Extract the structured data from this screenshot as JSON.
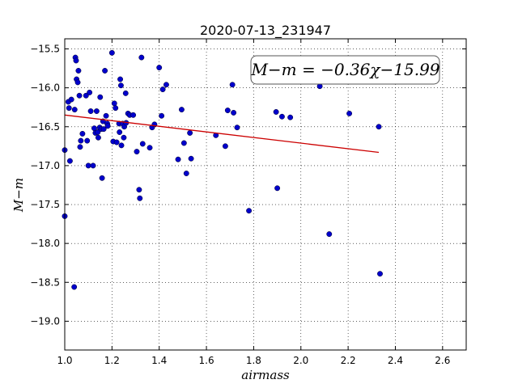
{
  "chart_data": {
    "type": "scatter",
    "title": "2020-07-13_231947",
    "xlabel": "airmass",
    "ylabel": "M−m",
    "xlim": [
      1.0,
      2.7
    ],
    "ylim": [
      -19.37,
      -15.37
    ],
    "x_ticks": [
      "1.0",
      "1.2",
      "1.4",
      "1.6",
      "1.8",
      "2.0",
      "2.2",
      "2.4",
      "2.6"
    ],
    "x_tick_values": [
      1.0,
      1.2,
      1.4,
      1.6,
      1.8,
      2.0,
      2.2,
      2.4,
      2.6
    ],
    "y_ticks": [
      "−15.5",
      "−16.0",
      "−16.5",
      "−17.0",
      "−17.5",
      "−18.0",
      "−18.5",
      "−19.0"
    ],
    "y_tick_values": [
      -15.5,
      -16.0,
      -16.5,
      -17.0,
      -17.5,
      -18.0,
      -18.5,
      -19.0
    ],
    "grid": true,
    "annotation": "M−m = −0.36χ−15.99",
    "series": [
      {
        "kind": "points",
        "color": "#0000cc",
        "x": [
          1.0,
          1.0,
          1.015,
          1.018,
          1.022,
          1.028,
          1.04,
          1.042,
          1.045,
          1.048,
          1.05,
          1.055,
          1.058,
          1.062,
          1.065,
          1.068,
          1.075,
          1.09,
          1.095,
          1.1,
          1.105,
          1.11,
          1.12,
          1.125,
          1.13,
          1.135,
          1.14,
          1.142,
          1.148,
          1.15,
          1.155,
          1.158,
          1.162,
          1.165,
          1.17,
          1.175,
          1.18,
          1.182,
          1.2,
          1.205,
          1.21,
          1.215,
          1.22,
          1.23,
          1.232,
          1.235,
          1.238,
          1.24,
          1.245,
          1.25,
          1.252,
          1.258,
          1.26,
          1.268,
          1.275,
          1.29,
          1.305,
          1.315,
          1.318,
          1.325,
          1.33,
          1.36,
          1.37,
          1.38,
          1.4,
          1.41,
          1.415,
          1.43,
          1.48,
          1.495,
          1.505,
          1.515,
          1.53,
          1.535,
          1.64,
          1.68,
          1.69,
          1.71,
          1.715,
          1.73,
          1.78,
          1.895,
          1.9,
          1.92,
          1.955,
          2.08,
          2.12,
          2.205,
          2.33,
          2.335
        ],
        "y": [
          -16.8,
          -17.65,
          -16.18,
          -16.26,
          -16.94,
          -16.15,
          -18.56,
          -16.28,
          -15.61,
          -15.65,
          -15.89,
          -15.93,
          -15.78,
          -16.1,
          -16.76,
          -16.68,
          -16.59,
          -16.1,
          -16.68,
          -17.0,
          -16.06,
          -16.3,
          -17.0,
          -16.52,
          -16.58,
          -16.3,
          -16.57,
          -16.64,
          -16.51,
          -16.12,
          -16.53,
          -17.16,
          -16.43,
          -16.53,
          -15.78,
          -16.36,
          -16.46,
          -16.49,
          -15.55,
          -16.69,
          -16.2,
          -16.26,
          -16.7,
          -16.46,
          -16.57,
          -15.89,
          -15.97,
          -16.74,
          -16.46,
          -16.64,
          -16.5,
          -16.07,
          -16.45,
          -16.33,
          -16.35,
          -16.35,
          -16.82,
          -17.31,
          -17.42,
          -15.61,
          -16.72,
          -16.77,
          -16.51,
          -16.47,
          -15.74,
          -16.36,
          -16.02,
          -15.96,
          -16.92,
          -16.28,
          -16.71,
          -17.1,
          -16.58,
          -16.91,
          -16.61,
          -16.75,
          -16.29,
          -15.96,
          -16.32,
          -16.51,
          -17.58,
          -16.31,
          -17.29,
          -16.37,
          -16.38,
          -15.98,
          -17.88,
          -16.33,
          -16.5,
          -18.39
        ]
      },
      {
        "kind": "fit-line",
        "color": "#cc0000",
        "x": [
          1.0,
          2.33
        ],
        "y": [
          -16.35,
          -16.83
        ]
      }
    ]
  }
}
